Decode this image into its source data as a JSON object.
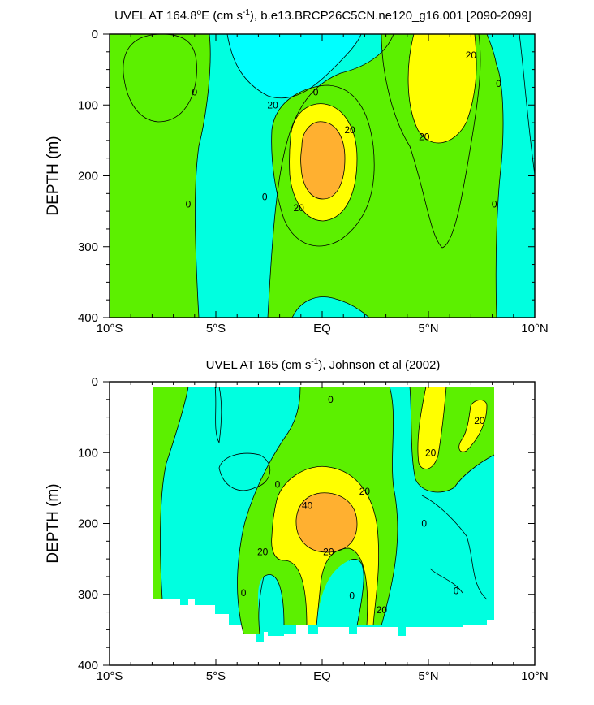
{
  "colors": {
    "neg40": "#00e6ff",
    "neg20": "#00ffff",
    "zero": "#00ffe0",
    "pos0": "#5cf000",
    "pos20": "#00f000",
    "pos40": "#ffff00",
    "pos60": "#ffb030",
    "line": "#000000",
    "background": "#ffffff"
  },
  "chart_data": [
    {
      "type": "contour",
      "title_main": "UVEL AT 164.8",
      "title_deg": "o",
      "title_mid": "E (cm s",
      "title_sup": "-1",
      "title_end": "), b.e13.BRCP26C5CN.ne120_g16.001 [2090-2099]",
      "ylabel": "DEPTH (m)",
      "xlabel": "",
      "xlim": [
        -10,
        10
      ],
      "ylim": [
        400,
        0
      ],
      "y_inverted": true,
      "xticks": [
        -10,
        -5,
        0,
        5,
        10
      ],
      "xtick_labels": [
        "10°S",
        "5°S",
        "EQ",
        "5°N",
        "10°N"
      ],
      "yticks": [
        0,
        100,
        200,
        300,
        400
      ],
      "ytick_labels": [
        "0",
        "100",
        "200",
        "300",
        "400"
      ],
      "contour_interval": 20,
      "contour_labels": [
        {
          "text": "0",
          "x": -6.0,
          "y": 82
        },
        {
          "text": "-20",
          "x": -2.4,
          "y": 100
        },
        {
          "text": "0",
          "x": -0.3,
          "y": 82
        },
        {
          "text": "20",
          "x": 1.3,
          "y": 135
        },
        {
          "text": "20",
          "x": 7.0,
          "y": 30
        },
        {
          "text": "0",
          "x": 8.3,
          "y": 70
        },
        {
          "text": "20",
          "x": 4.8,
          "y": 145
        },
        {
          "text": "0",
          "x": -6.3,
          "y": 240
        },
        {
          "text": "0",
          "x": -2.7,
          "y": 230
        },
        {
          "text": "20",
          "x": -1.1,
          "y": 245
        },
        {
          "text": "0",
          "x": 8.1,
          "y": 240
        }
      ],
      "features": [
        {
          "name": "equatorial undercurrent core",
          "center": [
            0.0,
            175
          ],
          "max": 40
        },
        {
          "name": "north equatorial countercurrent",
          "center": [
            6.5,
            80
          ],
          "max": 20
        },
        {
          "name": "south equatorial current",
          "center": [
            -2.0,
            60
          ],
          "min": -20
        }
      ]
    },
    {
      "type": "contour",
      "title_main": "UVEL AT 165 (cm s",
      "title_sup": "-1",
      "title_end": "), Johnson et al (2002)",
      "ylabel": "DEPTH (m)",
      "xlabel": "",
      "xlim": [
        -10,
        10
      ],
      "ylim": [
        400,
        0
      ],
      "y_inverted": true,
      "xticks": [
        -10,
        -5,
        0,
        5,
        10
      ],
      "xtick_labels": [
        "10°S",
        "5°S",
        "EQ",
        "5°N",
        "10°N"
      ],
      "yticks": [
        0,
        100,
        200,
        300,
        400
      ],
      "ytick_labels": [
        "0",
        "100",
        "200",
        "300",
        "400"
      ],
      "contour_interval": 20,
      "data_extent_x": [
        -8,
        8
      ],
      "contour_labels": [
        {
          "text": "0",
          "x": 0.4,
          "y": 25
        },
        {
          "text": "20",
          "x": 5.1,
          "y": 100
        },
        {
          "text": "20",
          "x": 7.4,
          "y": 55
        },
        {
          "text": "0",
          "x": -2.1,
          "y": 145
        },
        {
          "text": "20",
          "x": 2.0,
          "y": 155
        },
        {
          "text": "40",
          "x": -0.7,
          "y": 175
        },
        {
          "text": "0",
          "x": 4.8,
          "y": 200
        },
        {
          "text": "20",
          "x": -2.8,
          "y": 240
        },
        {
          "text": "20",
          "x": 0.3,
          "y": 240
        },
        {
          "text": "0",
          "x": -3.7,
          "y": 298
        },
        {
          "text": "0",
          "x": 1.4,
          "y": 302
        },
        {
          "text": "0",
          "x": 6.3,
          "y": 295
        },
        {
          "text": "20",
          "x": 2.8,
          "y": 322
        }
      ],
      "features": [
        {
          "name": "equatorial undercurrent core",
          "center": [
            0.0,
            190
          ],
          "max": 40
        },
        {
          "name": "north equatorial countercurrent",
          "center": [
            5.2,
            60
          ],
          "max": 20
        }
      ]
    }
  ]
}
